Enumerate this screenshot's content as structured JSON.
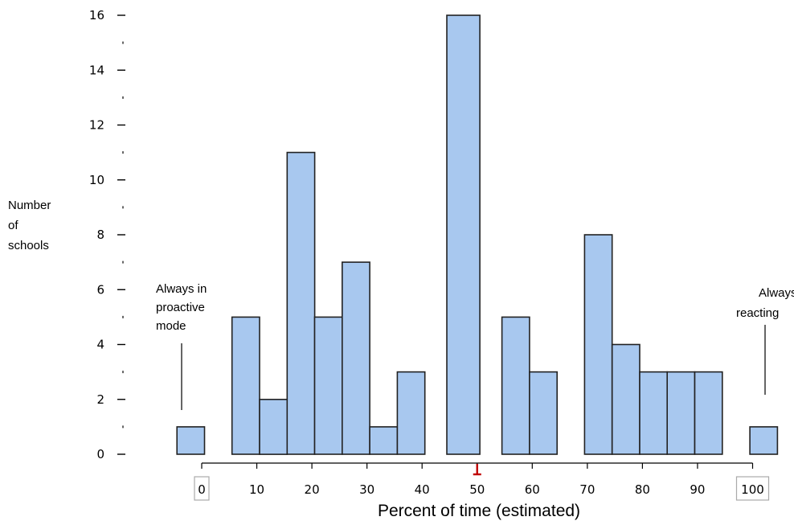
{
  "chart_data": {
    "type": "bar",
    "title": "",
    "xlabel": "Percent of time (estimated)",
    "ylabel": [
      "Number",
      "of",
      "schools"
    ],
    "ylim": [
      0,
      16
    ],
    "xlim": [
      0,
      100
    ],
    "y_ticks": [
      0,
      2,
      4,
      6,
      8,
      10,
      12,
      14,
      16
    ],
    "x_ticks": [
      0,
      10,
      20,
      30,
      40,
      50,
      60,
      70,
      80,
      90,
      100
    ],
    "boxed_tick_labels": [
      0,
      100
    ],
    "median_marker": 50,
    "bins": [
      {
        "x0": -4.5,
        "x1": 0.5,
        "count": 1
      },
      {
        "x0": 5.5,
        "x1": 10.5,
        "count": 5
      },
      {
        "x0": 10.5,
        "x1": 15.5,
        "count": 2
      },
      {
        "x0": 15.5,
        "x1": 20.5,
        "count": 11
      },
      {
        "x0": 20.5,
        "x1": 25.5,
        "count": 5
      },
      {
        "x0": 25.5,
        "x1": 30.5,
        "count": 7
      },
      {
        "x0": 30.5,
        "x1": 35.5,
        "count": 1
      },
      {
        "x0": 35.5,
        "x1": 40.5,
        "count": 3
      },
      {
        "x0": 44.5,
        "x1": 50.5,
        "count": 16
      },
      {
        "x0": 54.5,
        "x1": 59.5,
        "count": 5
      },
      {
        "x0": 59.5,
        "x1": 64.5,
        "count": 3
      },
      {
        "x0": 69.5,
        "x1": 74.5,
        "count": 8
      },
      {
        "x0": 74.5,
        "x1": 79.5,
        "count": 4
      },
      {
        "x0": 79.5,
        "x1": 84.5,
        "count": 3
      },
      {
        "x0": 84.5,
        "x1": 89.5,
        "count": 3
      },
      {
        "x0": 89.5,
        "x1": 94.5,
        "count": 3
      },
      {
        "x0": 99.5,
        "x1": 104.5,
        "count": 1
      }
    ],
    "annotations": {
      "left": [
        "Always in",
        "proactive",
        "mode"
      ],
      "right": [
        "Always",
        "reacting"
      ]
    },
    "colors": {
      "bar_fill": "#a8c8ef",
      "bar_stroke": "#222222",
      "median": "#c00000"
    }
  }
}
